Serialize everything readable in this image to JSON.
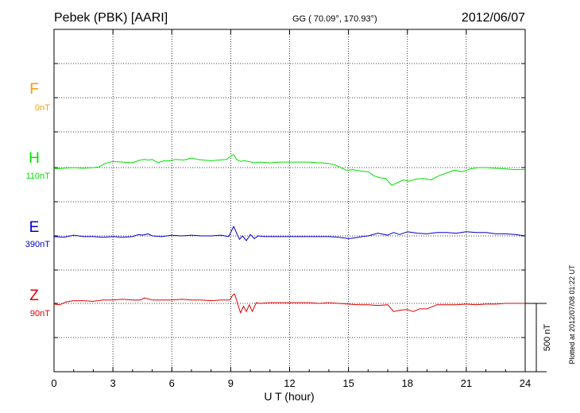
{
  "header": {
    "station": "Pebek (PBK)  [AARI]",
    "coords": "GG ( 70.09°, 170.93°)",
    "date": "2012/06/07"
  },
  "side_note": "Plotted at 2012/07/08 01:22  UT",
  "scale_bar_label": "500 nT",
  "chart_data": {
    "type": "line",
    "xlabel": "U T (hour)",
    "xlim": [
      0,
      24
    ],
    "x_ticks": [
      "0",
      "3",
      "6",
      "9",
      "12",
      "15",
      "18",
      "21",
      "24"
    ],
    "scale_bar_nT": 500,
    "grid": true,
    "series": [
      {
        "name": "F",
        "offset_label": "0nT",
        "color": "#ff9900",
        "baseline_nT": 0,
        "x": [],
        "y": []
      },
      {
        "name": "H",
        "offset_label": "110nT",
        "color": "#00e000",
        "baseline_nT": 0,
        "x": [
          0,
          0.5,
          1,
          1.5,
          2,
          2.3,
          2.6,
          3,
          3.5,
          4,
          4.4,
          4.6,
          4.8,
          5,
          5.3,
          5.6,
          5.9,
          6.2,
          6.6,
          7,
          7.3,
          7.6,
          8,
          8.4,
          8.8,
          9.05,
          9.15,
          9.3,
          9.5,
          9.7,
          9.9,
          10.2,
          10.5,
          11,
          11.5,
          12,
          12.5,
          13,
          13.5,
          14,
          14.3,
          14.6,
          14.9,
          15.2,
          15.6,
          16,
          16.3,
          16.6,
          16.9,
          17.2,
          17.5,
          17.8,
          18.1,
          18.4,
          18.8,
          19.2,
          19.6,
          20,
          20.4,
          20.8,
          21.2,
          21.6,
          22,
          22.5,
          23,
          23.5,
          24
        ],
        "y": [
          -10,
          -5,
          0,
          -5,
          0,
          5,
          30,
          45,
          40,
          35,
          55,
          60,
          55,
          60,
          35,
          50,
          50,
          60,
          55,
          70,
          60,
          55,
          50,
          55,
          60,
          90,
          95,
          60,
          45,
          50,
          45,
          35,
          40,
          35,
          40,
          40,
          40,
          40,
          35,
          30,
          20,
          0,
          -20,
          -15,
          -25,
          -30,
          -60,
          -75,
          -80,
          -130,
          -110,
          -90,
          -100,
          -85,
          -80,
          -90,
          -60,
          -40,
          -20,
          -30,
          -10,
          0,
          0,
          -5,
          -10,
          -15,
          -15
        ]
      },
      {
        "name": "E",
        "offset_label": "390nT",
        "color": "#0000d0",
        "baseline_nT": 0,
        "x": [
          0,
          0.5,
          1,
          1.5,
          2,
          2.5,
          3,
          3.5,
          4,
          4.3,
          4.5,
          4.8,
          5,
          5.5,
          6,
          6.5,
          7,
          7.5,
          8,
          8.5,
          8.9,
          9.05,
          9.15,
          9.3,
          9.45,
          9.6,
          9.8,
          10,
          10.2,
          10.4,
          10.7,
          11,
          11.5,
          12,
          12.5,
          13,
          13.5,
          14,
          14.5,
          15,
          15.3,
          15.7,
          16,
          16.5,
          17,
          17.3,
          17.6,
          18,
          18.5,
          19,
          19.5,
          20,
          20.5,
          21,
          21.5,
          22,
          22.5,
          23,
          23.5,
          24
        ],
        "y": [
          -5,
          -10,
          5,
          -5,
          -5,
          -10,
          -5,
          -10,
          -5,
          10,
          5,
          15,
          0,
          -5,
          5,
          0,
          5,
          0,
          0,
          5,
          -5,
          40,
          70,
          20,
          -25,
          0,
          -35,
          10,
          -20,
          0,
          -5,
          -5,
          -5,
          -5,
          -5,
          -5,
          -5,
          -5,
          -10,
          -20,
          -15,
          -5,
          0,
          20,
          5,
          25,
          10,
          30,
          20,
          15,
          25,
          25,
          20,
          30,
          25,
          25,
          15,
          15,
          10,
          0
        ]
      },
      {
        "name": "Z",
        "offset_label": "90nT",
        "color": "#e00000",
        "baseline_nT": 0,
        "x": [
          0,
          0.3,
          0.6,
          1,
          1.5,
          2,
          2.5,
          3,
          3.5,
          4,
          4.4,
          4.6,
          5,
          5.5,
          6,
          6.5,
          7,
          7.5,
          8,
          8.5,
          8.95,
          9.1,
          9.2,
          9.35,
          9.5,
          9.65,
          9.8,
          9.95,
          10.1,
          10.3,
          10.5,
          11,
          11.5,
          12,
          12.5,
          13,
          13.5,
          14,
          14.5,
          15,
          15.5,
          16,
          16.5,
          17,
          17.3,
          17.6,
          18,
          18.3,
          18.6,
          19,
          19.5,
          20,
          20.5,
          21,
          21.5,
          22,
          22.5,
          23,
          23.5,
          24
        ],
        "y": [
          -5,
          -10,
          10,
          20,
          20,
          15,
          25,
          25,
          30,
          25,
          25,
          40,
          25,
          25,
          25,
          30,
          25,
          25,
          20,
          25,
          25,
          60,
          70,
          0,
          -70,
          -20,
          -60,
          -10,
          -60,
          5,
          0,
          5,
          5,
          5,
          5,
          5,
          0,
          5,
          0,
          -5,
          -10,
          -10,
          -15,
          -10,
          -60,
          -50,
          -45,
          -60,
          -40,
          -40,
          -10,
          -10,
          -10,
          -5,
          -10,
          -5,
          -5,
          0,
          0,
          0
        ]
      }
    ]
  }
}
